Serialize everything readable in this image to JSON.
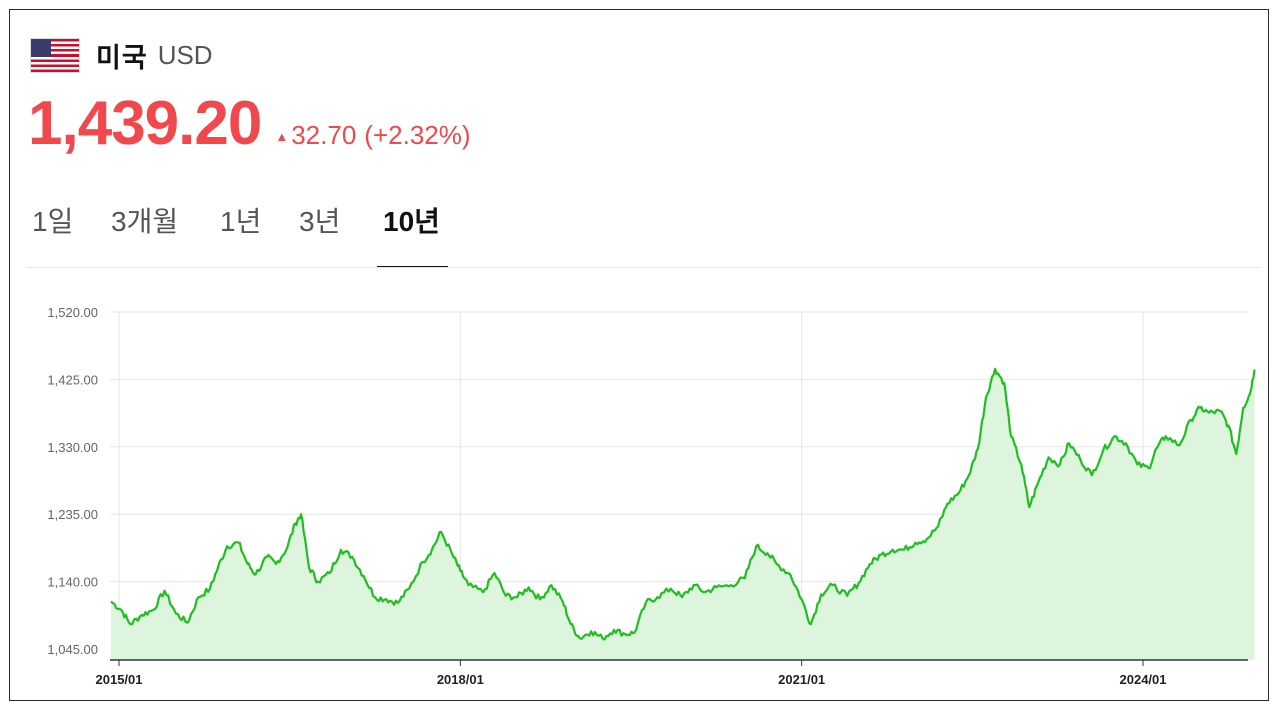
{
  "header": {
    "flag_icon": "us-flag-icon",
    "country": "미국",
    "currency": "USD"
  },
  "quote": {
    "price": "1,439.20",
    "direction_icon": "up-triangle-icon",
    "change": "32.70",
    "change_percent": "(+2.32%)",
    "color": "#f0484c"
  },
  "tabs": [
    {
      "label": "1일",
      "active": false
    },
    {
      "label": "3개월",
      "active": false
    },
    {
      "label": "1년",
      "active": false
    },
    {
      "label": "3년",
      "active": false
    },
    {
      "label": "10년",
      "active": true
    }
  ],
  "chart_data": {
    "type": "area",
    "line_color": "#1fbf1f",
    "fill_color": "#dcf5dc",
    "ylim": [
      1035,
      1520
    ],
    "y_ticks": [
      "1,520.00",
      "1,425.00",
      "1,330.00",
      "1,235.00",
      "1,140.00",
      "1,045.00"
    ],
    "y_tick_values": [
      1520,
      1425,
      1330,
      1235,
      1140,
      1045
    ],
    "x_ticks": [
      "2015/01",
      "2018/01",
      "2021/01",
      "2024/01"
    ],
    "x_tick_values": [
      2015.0,
      2018.0,
      2021.0,
      2024.0
    ],
    "xlim": [
      2014.93,
      2024.98
    ],
    "grid": true,
    "series": [
      {
        "values": [
          [
            2014.93,
            1112
          ],
          [
            2015.02,
            1100
          ],
          [
            2015.1,
            1080
          ],
          [
            2015.2,
            1093
          ],
          [
            2015.3,
            1100
          ],
          [
            2015.4,
            1127
          ],
          [
            2015.5,
            1095
          ],
          [
            2015.6,
            1082
          ],
          [
            2015.7,
            1118
          ],
          [
            2015.8,
            1130
          ],
          [
            2015.87,
            1160
          ],
          [
            2015.95,
            1190
          ],
          [
            2016.05,
            1195
          ],
          [
            2016.13,
            1165
          ],
          [
            2016.2,
            1150
          ],
          [
            2016.3,
            1175
          ],
          [
            2016.38,
            1165
          ],
          [
            2016.47,
            1185
          ],
          [
            2016.55,
            1222
          ],
          [
            2016.6,
            1235
          ],
          [
            2016.67,
            1160
          ],
          [
            2016.75,
            1140
          ],
          [
            2016.85,
            1152
          ],
          [
            2016.95,
            1185
          ],
          [
            2017.05,
            1175
          ],
          [
            2017.15,
            1148
          ],
          [
            2017.25,
            1118
          ],
          [
            2017.35,
            1115
          ],
          [
            2017.45,
            1110
          ],
          [
            2017.55,
            1130
          ],
          [
            2017.67,
            1168
          ],
          [
            2017.75,
            1185
          ],
          [
            2017.83,
            1210
          ],
          [
            2017.93,
            1178
          ],
          [
            2018.0,
            1155
          ],
          [
            2018.07,
            1135
          ],
          [
            2018.2,
            1125
          ],
          [
            2018.3,
            1152
          ],
          [
            2018.4,
            1120
          ],
          [
            2018.5,
            1118
          ],
          [
            2018.6,
            1132
          ],
          [
            2018.7,
            1115
          ],
          [
            2018.8,
            1135
          ],
          [
            2018.9,
            1112
          ],
          [
            2018.97,
            1080
          ],
          [
            2019.05,
            1060
          ],
          [
            2019.15,
            1070
          ],
          [
            2019.25,
            1060
          ],
          [
            2019.35,
            1072
          ],
          [
            2019.45,
            1066
          ],
          [
            2019.53,
            1068
          ],
          [
            2019.63,
            1110
          ],
          [
            2019.73,
            1118
          ],
          [
            2019.85,
            1130
          ],
          [
            2019.95,
            1118
          ],
          [
            2020.05,
            1135
          ],
          [
            2020.15,
            1125
          ],
          [
            2020.25,
            1132
          ],
          [
            2020.38,
            1135
          ],
          [
            2020.5,
            1145
          ],
          [
            2020.6,
            1190
          ],
          [
            2020.7,
            1180
          ],
          [
            2020.78,
            1165
          ],
          [
            2020.9,
            1150
          ],
          [
            2021.0,
            1115
          ],
          [
            2021.08,
            1080
          ],
          [
            2021.17,
            1122
          ],
          [
            2021.27,
            1135
          ],
          [
            2021.4,
            1120
          ],
          [
            2021.5,
            1138
          ],
          [
            2021.6,
            1165
          ],
          [
            2021.7,
            1178
          ],
          [
            2021.8,
            1185
          ],
          [
            2021.9,
            1185
          ],
          [
            2022.0,
            1195
          ],
          [
            2022.1,
            1200
          ],
          [
            2022.2,
            1218
          ],
          [
            2022.28,
            1250
          ],
          [
            2022.38,
            1265
          ],
          [
            2022.47,
            1290
          ],
          [
            2022.55,
            1328
          ],
          [
            2022.62,
            1400
          ],
          [
            2022.7,
            1440
          ],
          [
            2022.78,
            1420
          ],
          [
            2022.84,
            1345
          ],
          [
            2022.93,
            1305
          ],
          [
            2023.0,
            1245
          ],
          [
            2023.08,
            1280
          ],
          [
            2023.17,
            1315
          ],
          [
            2023.27,
            1305
          ],
          [
            2023.35,
            1335
          ],
          [
            2023.45,
            1312
          ],
          [
            2023.55,
            1290
          ],
          [
            2023.65,
            1325
          ],
          [
            2023.75,
            1345
          ],
          [
            2023.85,
            1335
          ],
          [
            2023.95,
            1305
          ],
          [
            2024.05,
            1300
          ],
          [
            2024.12,
            1328
          ],
          [
            2024.2,
            1345
          ],
          [
            2024.32,
            1332
          ],
          [
            2024.42,
            1368
          ],
          [
            2024.5,
            1385
          ],
          [
            2024.58,
            1378
          ],
          [
            2024.68,
            1380
          ],
          [
            2024.75,
            1360
          ],
          [
            2024.82,
            1320
          ],
          [
            2024.88,
            1385
          ],
          [
            2024.94,
            1405
          ],
          [
            2024.98,
            1439
          ]
        ]
      }
    ]
  }
}
